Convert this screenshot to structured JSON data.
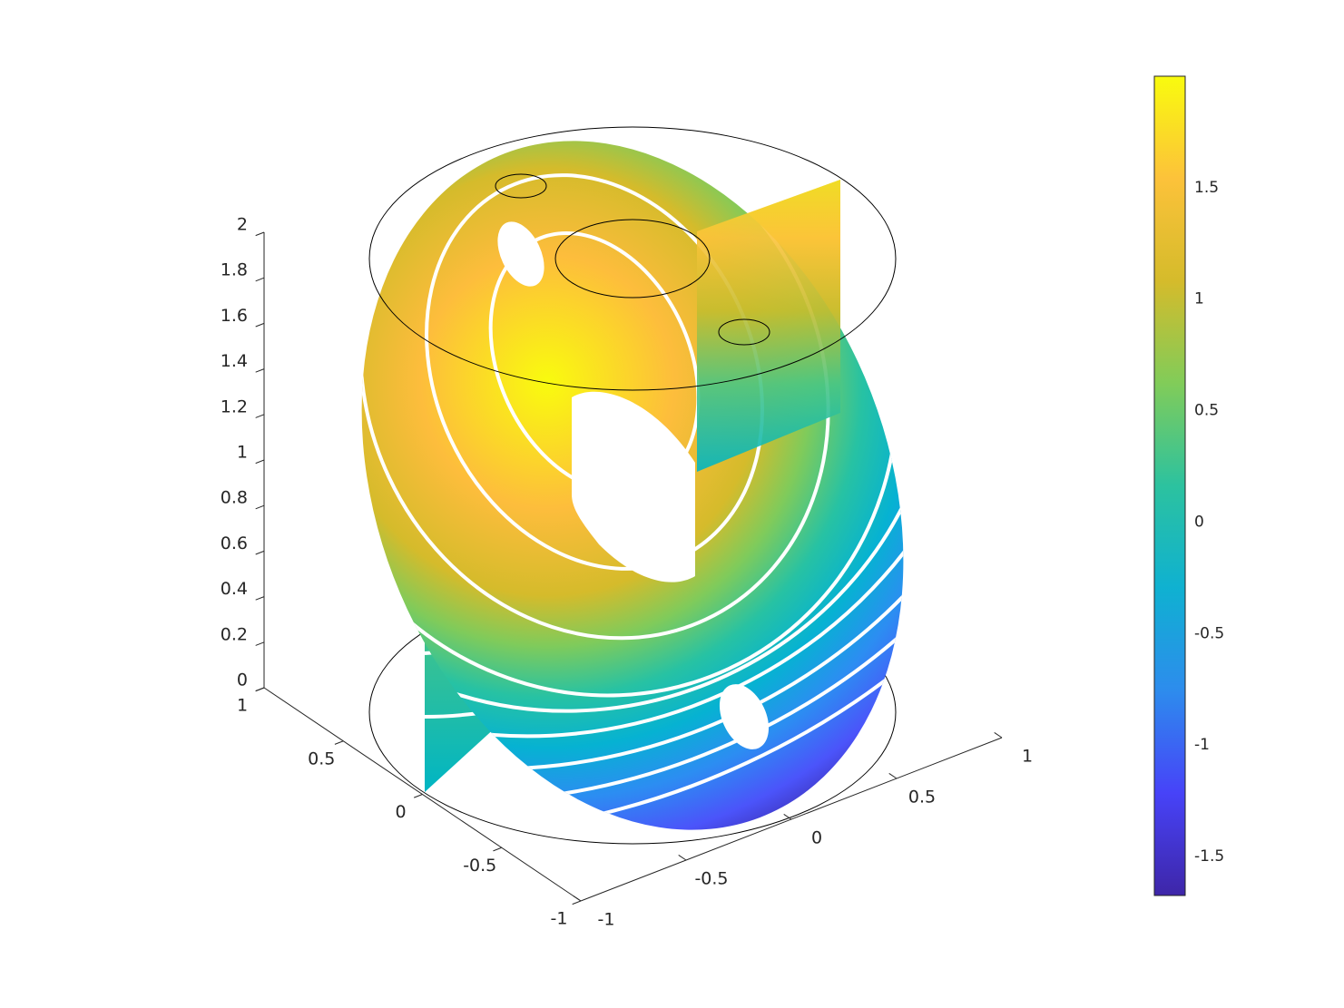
{
  "chart_data": {
    "type": "surface3d",
    "xlim": [
      -1,
      1
    ],
    "xticks": [
      -1,
      -0.5,
      0,
      0.5,
      1
    ],
    "ylim": [
      -1,
      1
    ],
    "yticks": [
      -1,
      -0.5,
      0,
      0.5,
      1
    ],
    "zlim": [
      0,
      2
    ],
    "zticks": [
      0,
      0.2,
      0.4,
      0.6,
      0.8,
      1,
      1.2,
      1.4,
      1.6,
      1.8,
      2
    ],
    "colorbar": {
      "clim": [
        -1.675,
        2.0
      ],
      "ticks": [
        -1.5,
        -1,
        -0.5,
        0,
        0.5,
        1,
        1.5
      ],
      "colormap": "parula"
    }
  }
}
